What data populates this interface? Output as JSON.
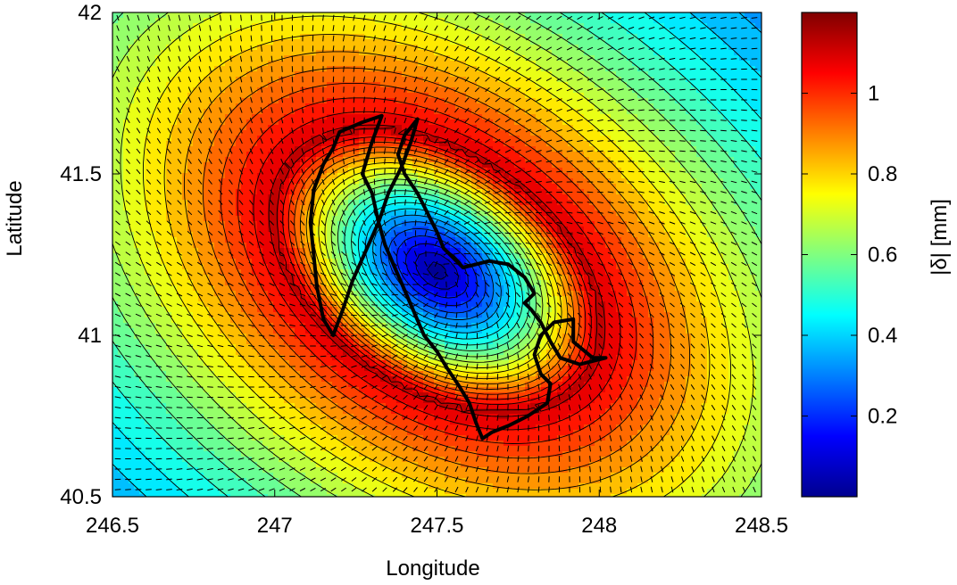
{
  "chart_data": {
    "type": "heatmap",
    "title": "",
    "xlabel": "Longitude",
    "ylabel": "Latitude",
    "xlim": [
      246.5,
      248.5
    ],
    "ylim": [
      40.5,
      42
    ],
    "x_ticks": [
      "246.5",
      "247",
      "247.5",
      "248",
      "248.5"
    ],
    "y_ticks": [
      "40.5",
      "41",
      "41.5",
      "42"
    ],
    "colorbar": {
      "label": "|δ| [mm]",
      "range": [
        0,
        1.2
      ],
      "colormap": "jet",
      "ticks": [
        "0.2",
        "0.4",
        "0.6",
        "0.8",
        "1"
      ],
      "tick_values": [
        0.2,
        0.4,
        0.6,
        0.8,
        1.0
      ]
    },
    "contour_levels": [
      0.05,
      0.1,
      0.15,
      0.2,
      0.25,
      0.3,
      0.35,
      0.4,
      0.45,
      0.5,
      0.55,
      0.6,
      0.65,
      0.7,
      0.75,
      0.8,
      0.85,
      0.9,
      0.95,
      1.0,
      1.05,
      1.1
    ],
    "field": {
      "center": [
        247.5,
        41.2
      ],
      "min_value": 0.02,
      "max_value": 1.12,
      "ring_peak_region": "lake boundary",
      "corner_min": "top-right"
    },
    "vector_field": "displacement direction arrows",
    "outline": {
      "name": "lake boundary",
      "points": [
        [
          247.27,
          41.66
        ],
        [
          247.3,
          41.67
        ],
        [
          247.33,
          41.68
        ],
        [
          247.3,
          41.6
        ],
        [
          247.27,
          41.5
        ],
        [
          247.3,
          41.44
        ],
        [
          247.32,
          41.35
        ],
        [
          247.34,
          41.28
        ],
        [
          247.37,
          41.21
        ],
        [
          247.4,
          41.14
        ],
        [
          247.43,
          41.07
        ],
        [
          247.46,
          41.0
        ],
        [
          247.5,
          40.95
        ],
        [
          247.53,
          40.9
        ],
        [
          247.57,
          40.84
        ],
        [
          247.6,
          40.79
        ],
        [
          247.62,
          40.73
        ],
        [
          247.64,
          40.68
        ],
        [
          247.67,
          40.7
        ],
        [
          247.72,
          40.72
        ],
        [
          247.78,
          40.75
        ],
        [
          247.84,
          40.79
        ],
        [
          247.85,
          40.85
        ],
        [
          247.82,
          40.88
        ],
        [
          247.8,
          40.94
        ],
        [
          247.82,
          41.0
        ],
        [
          247.86,
          41.04
        ],
        [
          247.92,
          41.05
        ],
        [
          247.92,
          40.98
        ],
        [
          247.98,
          40.93
        ],
        [
          248.02,
          40.93
        ],
        [
          247.94,
          40.91
        ],
        [
          247.88,
          40.93
        ],
        [
          247.85,
          40.98
        ],
        [
          247.82,
          41.04
        ],
        [
          247.79,
          41.08
        ],
        [
          247.77,
          41.1
        ],
        [
          247.8,
          41.13
        ],
        [
          247.77,
          41.18
        ],
        [
          247.72,
          41.22
        ],
        [
          247.66,
          41.23
        ],
        [
          247.62,
          41.22
        ],
        [
          247.58,
          41.21
        ],
        [
          247.55,
          41.24
        ],
        [
          247.52,
          41.27
        ],
        [
          247.5,
          41.32
        ],
        [
          247.47,
          41.38
        ],
        [
          247.44,
          41.44
        ],
        [
          247.4,
          41.5
        ],
        [
          247.38,
          41.56
        ],
        [
          247.4,
          41.62
        ],
        [
          247.44,
          41.67
        ],
        [
          247.42,
          41.6
        ],
        [
          247.39,
          41.52
        ],
        [
          247.35,
          41.44
        ],
        [
          247.32,
          41.35
        ],
        [
          247.28,
          41.26
        ],
        [
          247.24,
          41.17
        ],
        [
          247.21,
          41.08
        ],
        [
          247.18,
          41.0
        ],
        [
          247.15,
          41.05
        ],
        [
          247.13,
          41.15
        ],
        [
          247.12,
          41.25
        ],
        [
          247.11,
          41.35
        ],
        [
          247.12,
          41.45
        ],
        [
          247.15,
          41.53
        ],
        [
          247.18,
          41.58
        ],
        [
          247.2,
          41.63
        ],
        [
          247.27,
          41.66
        ]
      ]
    }
  }
}
